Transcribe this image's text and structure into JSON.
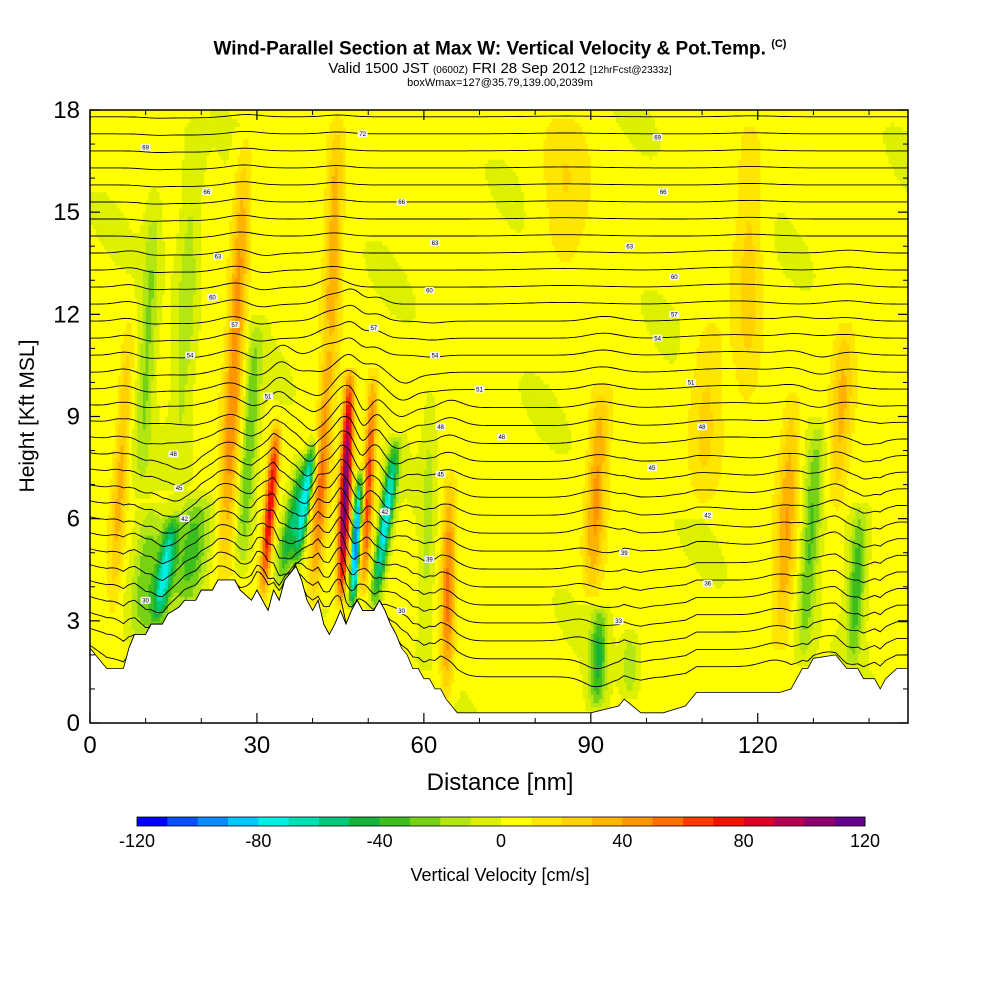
{
  "title": {
    "main": "Wind-Parallel Section at Max W: Vertical Velocity & Pot.Temp.",
    "copyright": "(C)",
    "valid_prefix": "Valid 1500 JST",
    "valid_utc": "(0600Z)",
    "valid_date": "FRI 28 Sep 2012",
    "forecast": "[12hrFcst@2333z]",
    "box_info": "boxWmax=127@35.79,139.00,2039m"
  },
  "chart_data": {
    "type": "heatmap",
    "xlabel": "Distance [nm]",
    "ylabel": "Height [Kft MSL]",
    "xlim": [
      0,
      147
    ],
    "ylim": [
      0,
      18
    ],
    "x_ticks": [
      "0",
      "30",
      "60",
      "90",
      "120"
    ],
    "x_tick_values": [
      0,
      30,
      60,
      90,
      120
    ],
    "y_ticks": [
      "0",
      "3",
      "6",
      "9",
      "12",
      "15",
      "18"
    ],
    "y_tick_values": [
      0,
      3,
      6,
      9,
      12,
      15,
      18
    ],
    "colorbar": {
      "label": "Vertical Velocity [cm/s]",
      "range": [
        -120,
        120
      ],
      "step": 10,
      "tick_labels": [
        "-120",
        "-80",
        "-40",
        "0",
        "40",
        "80",
        "120"
      ],
      "tick_values": [
        -120,
        -80,
        -40,
        0,
        40,
        80,
        120
      ],
      "colors": [
        "#0000ff",
        "#0a50ff",
        "#0a8cff",
        "#00c8ff",
        "#00f0e8",
        "#00e0b4",
        "#00c878",
        "#14b43c",
        "#3cbe1e",
        "#78d214",
        "#b4e614",
        "#dcf000",
        "#ffff00",
        "#ffe600",
        "#ffd200",
        "#ffb400",
        "#ff9600",
        "#ff6e00",
        "#ff3c00",
        "#f01400",
        "#dc0028",
        "#b40050",
        "#8c006e",
        "#64008c"
      ]
    },
    "terrain_kft": [
      [
        0,
        2.2
      ],
      [
        3,
        1.6
      ],
      [
        6,
        1.6
      ],
      [
        7,
        2.2
      ],
      [
        8,
        2.6
      ],
      [
        10,
        2.6
      ],
      [
        11,
        2.9
      ],
      [
        13,
        2.9
      ],
      [
        14,
        3.2
      ],
      [
        16,
        3.4
      ],
      [
        17,
        3.6
      ],
      [
        19,
        3.6
      ],
      [
        20,
        3.9
      ],
      [
        22,
        3.9
      ],
      [
        23,
        4.2
      ],
      [
        26,
        4.2
      ],
      [
        27,
        3.9
      ],
      [
        29,
        3.6
      ],
      [
        30,
        3.9
      ],
      [
        31,
        3.6
      ],
      [
        32,
        3.3
      ],
      [
        33,
        3.9
      ],
      [
        34,
        3.6
      ],
      [
        35,
        4.2
      ],
      [
        37,
        4.6
      ],
      [
        38,
        4.2
      ],
      [
        39,
        3.6
      ],
      [
        40,
        3.3
      ],
      [
        41,
        3.6
      ],
      [
        42,
        2.9
      ],
      [
        43,
        2.6
      ],
      [
        44,
        2.9
      ],
      [
        45,
        3.3
      ],
      [
        46,
        2.9
      ],
      [
        47,
        3.3
      ],
      [
        48,
        3.6
      ],
      [
        49,
        3.3
      ],
      [
        51,
        3.3
      ],
      [
        52,
        3.6
      ],
      [
        53,
        3.3
      ],
      [
        54,
        2.9
      ],
      [
        55,
        2.6
      ],
      [
        56,
        2.2
      ],
      [
        57,
        2.0
      ],
      [
        58,
        1.6
      ],
      [
        59,
        1.6
      ],
      [
        60,
        1.3
      ],
      [
        61,
        1.3
      ],
      [
        62,
        1.0
      ],
      [
        63,
        1.0
      ],
      [
        64,
        0.7
      ],
      [
        66,
        0.3
      ],
      [
        70,
        0.3
      ],
      [
        76,
        0.3
      ],
      [
        85,
        0.3
      ],
      [
        90,
        0.3
      ],
      [
        95,
        0.5
      ],
      [
        96,
        0.7
      ],
      [
        99,
        0.3
      ],
      [
        103,
        0.3
      ],
      [
        107,
        0.5
      ],
      [
        109,
        0.9
      ],
      [
        111,
        0.9
      ],
      [
        117,
        0.9
      ],
      [
        124,
        0.9
      ],
      [
        126,
        1.0
      ],
      [
        127,
        1.3
      ],
      [
        128,
        1.6
      ],
      [
        129,
        1.6
      ],
      [
        130,
        1.9
      ],
      [
        134,
        2.0
      ],
      [
        136,
        1.6
      ],
      [
        138,
        1.6
      ],
      [
        139,
        1.3
      ],
      [
        141,
        1.3
      ],
      [
        142,
        1.0
      ],
      [
        143,
        1.3
      ],
      [
        145,
        1.6
      ],
      [
        147,
        1.6
      ]
    ],
    "vertical_velocity_cells": [
      {
        "x": 4,
        "z0": 3.0,
        "z1": 12.0,
        "w": 30,
        "half_width_nm": 1.3,
        "lean": 0.35
      },
      {
        "x": 9,
        "z0": 2.2,
        "z1": 6.5,
        "w": -30,
        "half_width_nm": 2.5,
        "lean": 0.5
      },
      {
        "x": 12,
        "z0": 2.8,
        "z1": 6.2,
        "w": -70,
        "half_width_nm": 1.5,
        "lean": 0.9
      },
      {
        "x": 17,
        "z0": 3.2,
        "z1": 6.8,
        "w": -40,
        "half_width_nm": 3.0,
        "lean": 0.7
      },
      {
        "x": 9,
        "z0": 6.5,
        "z1": 16.0,
        "w": -25,
        "half_width_nm": 1.5,
        "lean": 0.3
      },
      {
        "x": 16,
        "z0": 6.8,
        "z1": 17.8,
        "w": -20,
        "half_width_nm": 2.0,
        "lean": 0.25
      },
      {
        "x": 24,
        "z0": 4.0,
        "z1": 17.5,
        "w": 45,
        "half_width_nm": 1.6,
        "lean": 0.3
      },
      {
        "x": 27,
        "z0": 4.2,
        "z1": 12.0,
        "w": -35,
        "half_width_nm": 1.4,
        "lean": 0.4
      },
      {
        "x": 31,
        "z0": 3.6,
        "z1": 9.0,
        "w": 80,
        "half_width_nm": 1.0,
        "lean": 0.5
      },
      {
        "x": 34,
        "z0": 4.0,
        "z1": 8.0,
        "w": -50,
        "half_width_nm": 1.5,
        "lean": 1.2
      },
      {
        "x": 37,
        "z0": 4.6,
        "z1": 8.5,
        "w": -70,
        "half_width_nm": 1.0,
        "lean": 0.9
      },
      {
        "x": 40,
        "z0": 3.3,
        "z1": 11.0,
        "w": 50,
        "half_width_nm": 1.4,
        "lean": 0.4
      },
      {
        "x": 45,
        "z0": 3.3,
        "z1": 10.5,
        "w": 110,
        "half_width_nm": 1.0,
        "lean": 0.25
      },
      {
        "x": 47,
        "z0": 3.3,
        "z1": 7.5,
        "w": -110,
        "half_width_nm": 0.8,
        "lean": 0.4
      },
      {
        "x": 49,
        "z0": 3.6,
        "z1": 10.5,
        "w": 60,
        "half_width_nm": 1.0,
        "lean": 0.3
      },
      {
        "x": 51,
        "z0": 3.3,
        "z1": 8.5,
        "w": -80,
        "half_width_nm": 1.2,
        "lean": 0.8
      },
      {
        "x": 43,
        "z0": 10.0,
        "z1": 18.0,
        "w": 35,
        "half_width_nm": 1.5,
        "lean": 0.2
      },
      {
        "x": 64,
        "z0": 0.5,
        "z1": 7.5,
        "w": 50,
        "half_width_nm": 1.3,
        "lean": 0.1
      },
      {
        "x": 60,
        "z0": 1.5,
        "z1": 10.0,
        "w": -15,
        "half_width_nm": 1.2,
        "lean": 0.15
      },
      {
        "x": 91,
        "z0": 0.3,
        "z1": 3.5,
        "w": -45,
        "half_width_nm": 1.5,
        "lean": 0.2
      },
      {
        "x": 90,
        "z0": 3.5,
        "z1": 10.0,
        "w": 40,
        "half_width_nm": 1.8,
        "lean": 0.3
      },
      {
        "x": 97,
        "z0": 0.7,
        "z1": 2.8,
        "w": -20,
        "half_width_nm": 1.5,
        "lean": 0.1
      },
      {
        "x": 128,
        "z0": 1.6,
        "z1": 9.0,
        "w": -35,
        "half_width_nm": 1.6,
        "lean": 0.4
      },
      {
        "x": 124,
        "z0": 2.0,
        "z1": 10.0,
        "w": 35,
        "half_width_nm": 1.8,
        "lean": 0.3
      },
      {
        "x": 137,
        "z0": 1.6,
        "z1": 6.5,
        "w": -40,
        "half_width_nm": 1.5,
        "lean": 0.3
      },
      {
        "x": 134,
        "z0": 6.0,
        "z1": 12.0,
        "w": 30,
        "half_width_nm": 2.0,
        "lean": 0.3
      },
      {
        "x": 110,
        "z0": 6.0,
        "z1": 12.0,
        "w": 20,
        "half_width_nm": 3.0,
        "lean": 0.2
      },
      {
        "x": 118,
        "z0": 9.0,
        "z1": 18.0,
        "w": 20,
        "half_width_nm": 2.5,
        "lean": 0.1
      },
      {
        "x": 85,
        "z0": 13.0,
        "z1": 18.0,
        "w": 15,
        "half_width_nm": 4.0,
        "lean": 0.1
      }
    ],
    "theta_contour_labels": [
      {
        "x": 10,
        "z": 3.6,
        "text": "30"
      },
      {
        "x": 17,
        "z": 6.0,
        "text": "42"
      },
      {
        "x": 16,
        "z": 6.9,
        "text": "45"
      },
      {
        "x": 15,
        "z": 7.9,
        "text": "48"
      },
      {
        "x": 32,
        "z": 9.6,
        "text": "51"
      },
      {
        "x": 18,
        "z": 10.8,
        "text": "54"
      },
      {
        "x": 26,
        "z": 11.7,
        "text": "57"
      },
      {
        "x": 22,
        "z": 12.5,
        "text": "60"
      },
      {
        "x": 23,
        "z": 13.7,
        "text": "63"
      },
      {
        "x": 21,
        "z": 15.6,
        "text": "66"
      },
      {
        "x": 10,
        "z": 16.9,
        "text": "69"
      },
      {
        "x": 49,
        "z": 17.3,
        "text": "72"
      },
      {
        "x": 56,
        "z": 3.3,
        "text": "30"
      },
      {
        "x": 61,
        "z": 4.8,
        "text": "39"
      },
      {
        "x": 53,
        "z": 6.2,
        "text": "42"
      },
      {
        "x": 63,
        "z": 7.3,
        "text": "45"
      },
      {
        "x": 63,
        "z": 8.7,
        "text": "48"
      },
      {
        "x": 70,
        "z": 9.8,
        "text": "51"
      },
      {
        "x": 62,
        "z": 10.8,
        "text": "54"
      },
      {
        "x": 51,
        "z": 11.6,
        "text": "57"
      },
      {
        "x": 61,
        "z": 12.7,
        "text": "60"
      },
      {
        "x": 62,
        "z": 14.1,
        "text": "63"
      },
      {
        "x": 56,
        "z": 15.3,
        "text": "66"
      },
      {
        "x": 74,
        "z": 8.4,
        "text": "48"
      },
      {
        "x": 95,
        "z": 3.0,
        "text": "33"
      },
      {
        "x": 96,
        "z": 5.0,
        "text": "39"
      },
      {
        "x": 111,
        "z": 6.1,
        "text": "42"
      },
      {
        "x": 111,
        "z": 4.1,
        "text": "36"
      },
      {
        "x": 101,
        "z": 7.5,
        "text": "45"
      },
      {
        "x": 110,
        "z": 8.7,
        "text": "48"
      },
      {
        "x": 108,
        "z": 10.0,
        "text": "51"
      },
      {
        "x": 102,
        "z": 11.3,
        "text": "54"
      },
      {
        "x": 105,
        "z": 12.0,
        "text": "57"
      },
      {
        "x": 105,
        "z": 13.1,
        "text": "60"
      },
      {
        "x": 97,
        "z": 14.0,
        "text": "63"
      },
      {
        "x": 103,
        "z": 15.6,
        "text": "66"
      },
      {
        "x": 102,
        "z": 17.2,
        "text": "69"
      }
    ]
  }
}
